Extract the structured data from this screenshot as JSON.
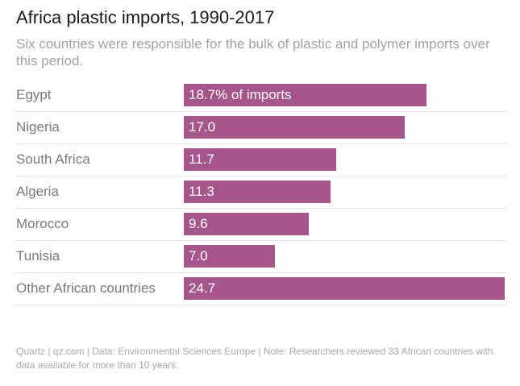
{
  "chart_data": {
    "type": "bar",
    "orientation": "horizontal",
    "title": "Africa plastic imports, 1990-2017",
    "subtitle": "Six countries were responsible for the bulk of plastic and polymer imports over this period.",
    "categories": [
      "Egypt",
      "Nigeria",
      "South Africa",
      "Algeria",
      "Morocco",
      "Tunisia",
      "Other African countries"
    ],
    "values": [
      18.7,
      17.0,
      11.7,
      11.3,
      9.6,
      7.0,
      24.7
    ],
    "value_labels": [
      "18.7% of imports",
      "17.0",
      "11.7",
      "11.3",
      "9.6",
      "7.0",
      "24.7"
    ],
    "xlim": [
      0,
      24.7
    ],
    "unit": "% of imports",
    "bar_color": "#a6568a",
    "footer": "Quartz | qz.com | Data: Environmental Sciences Europe | Note: Researchers reviewed 33 African countries with data available for more than 10 years."
  }
}
